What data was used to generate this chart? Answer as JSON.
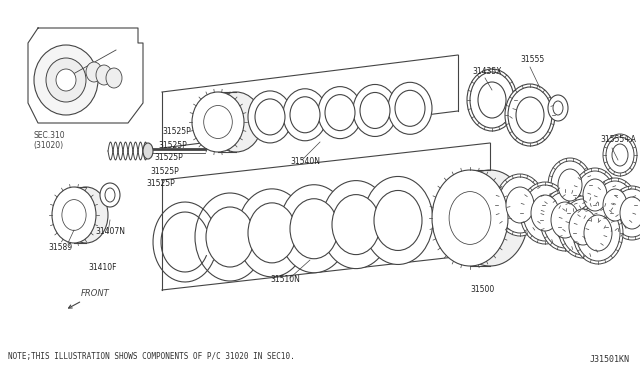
{
  "bg_color": "#ffffff",
  "line_color": "#444444",
  "note_text": "NOTE;THIS ILLUSTRATION SHOWS COMPONENTS OF P/C 31020 IN SEC10.",
  "diagram_id": "J31501KN",
  "sec_label": "SEC.310\n(31020)"
}
